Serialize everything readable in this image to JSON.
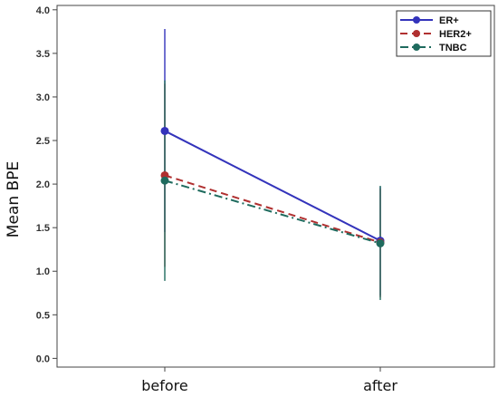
{
  "chart_data": {
    "type": "line",
    "title": "",
    "xlabel": "",
    "ylabel": "Mean BPE",
    "categories": [
      "before",
      "after"
    ],
    "ylim": [
      -0.1,
      4.05
    ],
    "yticks": [
      "0.0",
      "0.5",
      "1.0",
      "1.5",
      "2.0",
      "2.5",
      "3.0",
      "3.5",
      "4.0"
    ],
    "legend_position": "top-right",
    "grid": false,
    "series": [
      {
        "name": "ER+",
        "values": [
          2.61,
          1.35
        ],
        "error_low": [
          1.45,
          0.72
        ],
        "error_high": [
          3.78,
          1.97
        ],
        "color": "#3333bb",
        "dash": "solid"
      },
      {
        "name": "HER2+",
        "values": [
          2.1,
          1.33
        ],
        "error_low": [
          1.05,
          0.7
        ],
        "error_high": [
          3.15,
          1.95
        ],
        "color": "#b03030",
        "dash": "dashed"
      },
      {
        "name": "TNBC",
        "values": [
          2.04,
          1.32
        ],
        "error_low": [
          0.89,
          0.67
        ],
        "error_high": [
          3.19,
          1.98
        ],
        "color": "#1f6b5e",
        "dash": "dashdot"
      }
    ]
  }
}
